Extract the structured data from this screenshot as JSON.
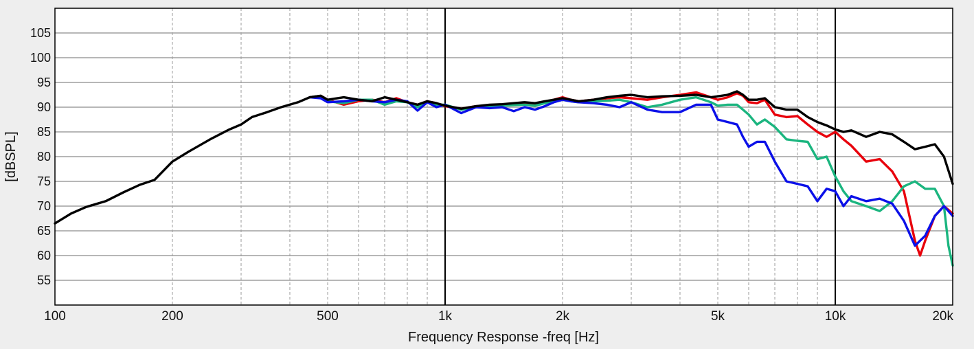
{
  "chart_data": {
    "type": "line",
    "title": "",
    "xlabel": "Frequency Response -freq [Hz]",
    "ylabel": "[dBSPL]",
    "x_scale": "log",
    "xlim": [
      100,
      20000
    ],
    "ylim": [
      50,
      110
    ],
    "x_ticks": [
      {
        "value": 100,
        "label": "100"
      },
      {
        "value": 200,
        "label": "200"
      },
      {
        "value": 500,
        "label": "500"
      },
      {
        "value": 1000,
        "label": "1k"
      },
      {
        "value": 2000,
        "label": "2k"
      },
      {
        "value": 5000,
        "label": "5k"
      },
      {
        "value": 10000,
        "label": "10k"
      },
      {
        "value": 20000,
        "label": "20k"
      }
    ],
    "y_ticks": [
      55,
      60,
      65,
      70,
      75,
      80,
      85,
      90,
      95,
      100,
      105
    ],
    "grid": true,
    "legend": "none",
    "series": [
      {
        "color": "#000000",
        "x": [
          100,
          110,
          120,
          135,
          150,
          165,
          180,
          200,
          220,
          250,
          280,
          300,
          320,
          350,
          380,
          420,
          450,
          480,
          500,
          550,
          600,
          650,
          700,
          750,
          800,
          850,
          900,
          950,
          1000,
          1100,
          1200,
          1300,
          1400,
          1500,
          1600,
          1700,
          1800,
          1900,
          2000,
          2100,
          2200,
          2400,
          2600,
          2800,
          3000,
          3300,
          3600,
          4000,
          4400,
          4800,
          5000,
          5300,
          5600,
          5800,
          6000,
          6300,
          6600,
          7000,
          7500,
          8000,
          8500,
          9000,
          9500,
          10000,
          10500,
          11000,
          12000,
          13000,
          14000,
          15000,
          16000,
          17000,
          18000,
          19000,
          20000
        ],
        "y": [
          66.5,
          68.5,
          69.8,
          71,
          72.8,
          74.3,
          75.3,
          79,
          81,
          83.5,
          85.5,
          86.5,
          88,
          89,
          90,
          91,
          92,
          92.3,
          91.5,
          92,
          91.5,
          91.2,
          92,
          91.5,
          91,
          90.5,
          91.2,
          90.8,
          90.3,
          89.7,
          90.2,
          90.5,
          90.6,
          90.8,
          91,
          90.8,
          91.2,
          91.5,
          91.8,
          91.5,
          91.2,
          91.5,
          92,
          92.3,
          92.5,
          92,
          92.2,
          92.3,
          92.5,
          92,
          92.2,
          92.5,
          93.2,
          92.5,
          91.5,
          91.5,
          91.8,
          90,
          89.5,
          89.5,
          88,
          87,
          86.3,
          85.5,
          85,
          85.3,
          84,
          85,
          84.5,
          83,
          81.5,
          82,
          82.5,
          80,
          74.5
        ]
      },
      {
        "color": "#e8000b",
        "x": [
          450,
          480,
          500,
          550,
          600,
          650,
          700,
          750,
          800,
          850,
          900,
          950,
          1000,
          1100,
          1200,
          1300,
          1400,
          1500,
          1600,
          1700,
          1800,
          1900,
          2000,
          2100,
          2200,
          2400,
          2600,
          2800,
          3000,
          3300,
          3600,
          4000,
          4400,
          4800,
          5000,
          5300,
          5600,
          5800,
          6000,
          6300,
          6600,
          7000,
          7500,
          8000,
          8500,
          9000,
          9500,
          10000,
          10500,
          11000,
          12000,
          13000,
          14000,
          15000,
          16000,
          16500,
          17000,
          18000,
          19000,
          20000
        ],
        "y": [
          92,
          92.3,
          91.5,
          90.5,
          91.2,
          91.5,
          91,
          91.8,
          91,
          90.5,
          91.2,
          90.8,
          90.2,
          89.7,
          90.2,
          90.3,
          90.4,
          90.6,
          90.8,
          90.5,
          91,
          91.5,
          92,
          91.5,
          91.2,
          91.5,
          91.8,
          92,
          91.8,
          91.5,
          92,
          92.5,
          93,
          92,
          91.5,
          92,
          92.8,
          92.3,
          91,
          90.8,
          91.5,
          88.5,
          88,
          88.2,
          86.5,
          85,
          84,
          85,
          83.5,
          82.2,
          79,
          79.5,
          77,
          73,
          63,
          60,
          63,
          68,
          70,
          68.5
        ]
      },
      {
        "color": "#1bb57f",
        "x": [
          450,
          480,
          500,
          550,
          600,
          650,
          700,
          750,
          800,
          850,
          900,
          950,
          1000,
          1100,
          1200,
          1300,
          1400,
          1500,
          1600,
          1700,
          1800,
          1900,
          2000,
          2100,
          2200,
          2400,
          2600,
          2800,
          3000,
          3300,
          3600,
          4000,
          4400,
          4800,
          5000,
          5300,
          5600,
          5800,
          6000,
          6300,
          6600,
          7000,
          7500,
          8000,
          8500,
          9000,
          9500,
          10000,
          10500,
          11000,
          12000,
          13000,
          14000,
          15000,
          16000,
          17000,
          18000,
          19000,
          19500,
          20000
        ],
        "y": [
          92,
          92.3,
          91.2,
          90.8,
          91.5,
          91.5,
          90.5,
          91.2,
          91,
          90,
          91,
          90.5,
          90.5,
          89.5,
          90,
          90.2,
          90.3,
          90.4,
          90.5,
          90.3,
          90.8,
          91.2,
          91.5,
          91.2,
          91,
          91.2,
          91.3,
          91.5,
          91,
          90,
          90.5,
          91.5,
          92,
          91,
          90.3,
          90.5,
          90.5,
          89.5,
          88.5,
          86.5,
          87.5,
          86,
          83.5,
          83.2,
          83,
          79.5,
          80,
          76,
          73,
          71,
          70,
          69,
          71,
          74,
          75,
          73.5,
          73.5,
          70,
          62,
          58
        ]
      },
      {
        "color": "#0b10e8",
        "x": [
          450,
          480,
          500,
          550,
          600,
          650,
          700,
          750,
          800,
          850,
          900,
          950,
          1000,
          1100,
          1200,
          1300,
          1400,
          1500,
          1600,
          1700,
          1800,
          1900,
          2000,
          2100,
          2200,
          2400,
          2600,
          2800,
          3000,
          3300,
          3600,
          4000,
          4400,
          4800,
          5000,
          5300,
          5600,
          5800,
          6000,
          6300,
          6600,
          7000,
          7500,
          8000,
          8500,
          9000,
          9500,
          10000,
          10500,
          11000,
          12000,
          13000,
          14000,
          15000,
          16000,
          17000,
          18000,
          19000,
          20000
        ],
        "y": [
          92,
          91.8,
          91,
          91.2,
          91.5,
          91.2,
          91,
          91.5,
          91.2,
          89.3,
          91,
          90,
          90.5,
          88.8,
          90,
          89.8,
          90,
          89.2,
          90,
          89.5,
          90.2,
          91,
          91.5,
          91.2,
          91,
          90.8,
          90.5,
          90,
          91,
          89.5,
          89,
          89,
          90.5,
          90.5,
          87.5,
          87,
          86.5,
          84,
          82,
          83,
          83,
          79,
          75,
          74.5,
          74,
          71,
          73.5,
          73,
          70,
          72,
          71,
          71.5,
          70.5,
          67,
          62,
          64,
          68,
          70,
          68
        ]
      }
    ]
  }
}
